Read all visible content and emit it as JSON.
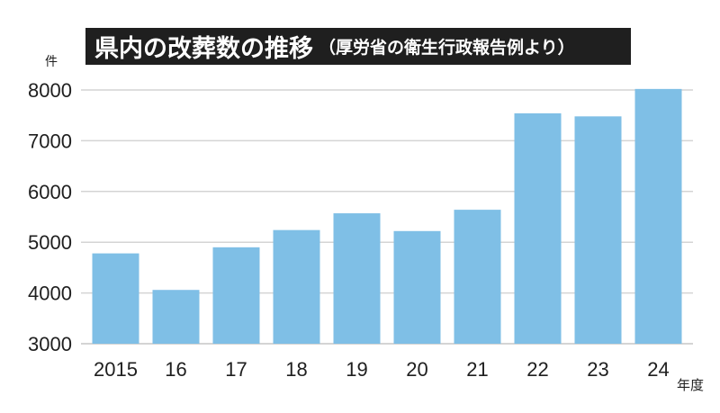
{
  "chart_data": {
    "type": "bar",
    "title": "県内の改葬数の推移",
    "subtitle": "（厚労省の衛生行政報告例より）",
    "ylabel": "件",
    "xlabel": "年度",
    "categories": [
      "2015",
      "16",
      "17",
      "18",
      "19",
      "20",
      "21",
      "22",
      "23",
      "24"
    ],
    "values": [
      4780,
      4060,
      4900,
      5240,
      5570,
      5220,
      5640,
      7540,
      7480,
      8020
    ],
    "ylim": [
      3000,
      8000
    ],
    "yticks": [
      "3000",
      "4000",
      "5000",
      "6000",
      "7000",
      "8000"
    ],
    "grid": true,
    "legend": "none",
    "colors": {
      "bar": "#7fbfe6",
      "grid": "#d4d4d4",
      "text": "#1f1f1f",
      "title_bg": "#1f1f1f",
      "title_text": "#ffffff"
    }
  }
}
